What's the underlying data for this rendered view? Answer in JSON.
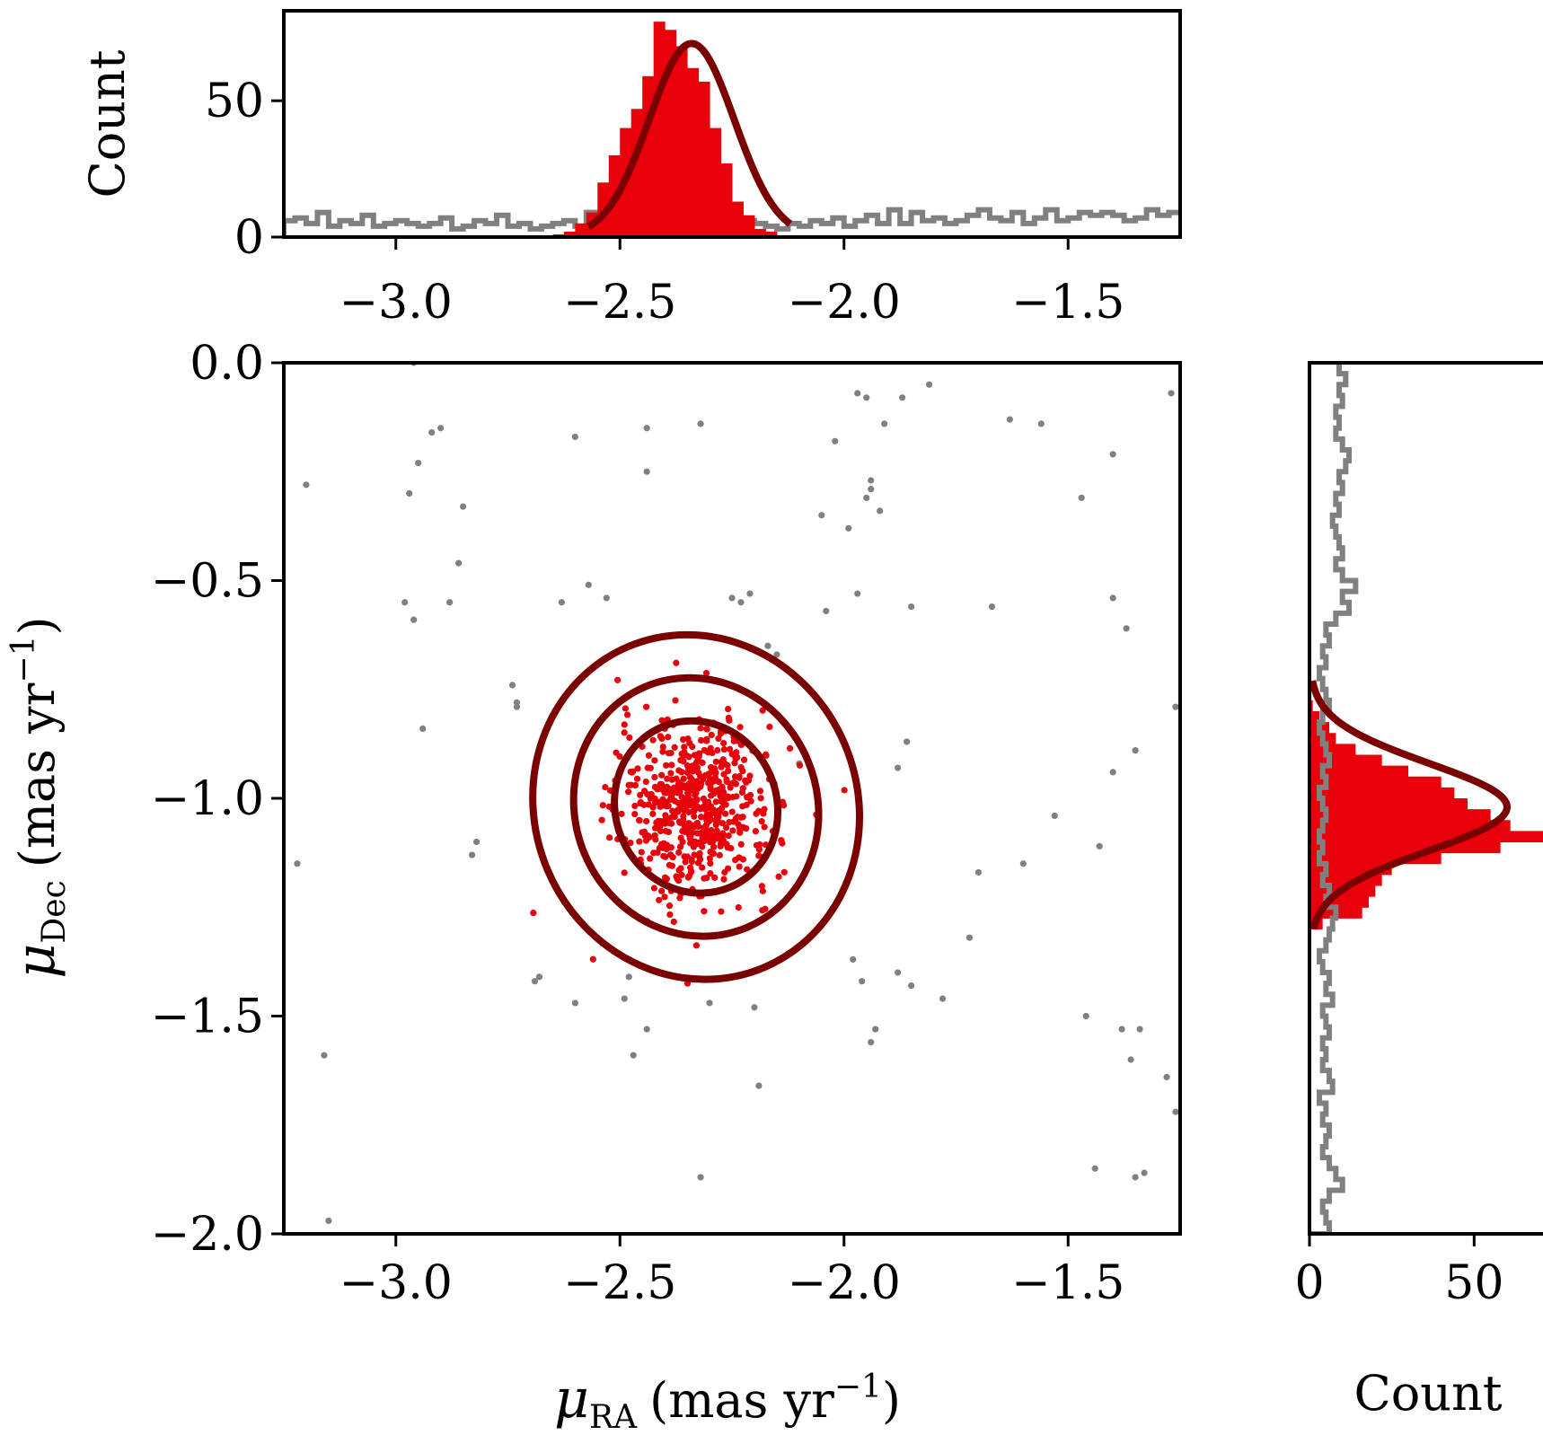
{
  "colors": {
    "member_points": "#e8000b",
    "field_points": "#808080",
    "fit": "#7b0000",
    "member_hist": "#e8000b",
    "field_hist": "#808080"
  },
  "labels": {
    "top_ylabel": "Count",
    "right_xlabel": "Count",
    "main_xlabel_sym": "μ",
    "main_xlabel_sub": "RA",
    "main_xlabel_unit": "(mas yr",
    "main_xlabel_exp": "−1",
    "main_xlabel_close": ")",
    "main_ylabel_sym": "μ",
    "main_ylabel_sub": "Dec",
    "main_ylabel_unit": "(mas yr",
    "main_ylabel_exp": "−1",
    "main_ylabel_close": ")"
  },
  "chart_data": [
    {
      "type": "scatter",
      "xlim": [
        -3.25,
        -1.25
      ],
      "ylim": [
        -2.0,
        0.0
      ],
      "xticks": [
        -3.0,
        -2.5,
        -2.0,
        -1.5
      ],
      "xtick_labels": [
        "−3.0",
        "−2.5",
        "−2.0",
        "−1.5"
      ],
      "yticks": [
        0.0,
        -0.5,
        -1.0,
        -1.5,
        -2.0
      ],
      "ytick_labels": [
        "0.0",
        "−0.5",
        "−1.0",
        "−1.5",
        "−2.0"
      ],
      "grid": false,
      "series": [
        {
          "role": "field",
          "points": [
            [
              -2.96,
              0.0
            ],
            [
              -2.9,
              -0.15
            ],
            [
              -2.92,
              -0.16
            ],
            [
              -2.95,
              -0.23
            ],
            [
              -2.97,
              -0.3
            ],
            [
              -3.2,
              -0.28
            ],
            [
              -2.85,
              -0.33
            ],
            [
              -2.86,
              -0.46
            ],
            [
              -2.98,
              -0.55
            ],
            [
              -2.96,
              -0.59
            ],
            [
              -2.88,
              -0.55
            ],
            [
              -2.6,
              -0.17
            ],
            [
              -2.57,
              -0.51
            ],
            [
              -2.63,
              -0.55
            ],
            [
              -2.53,
              -0.54
            ],
            [
              -2.44,
              -0.15
            ],
            [
              -2.44,
              -0.25
            ],
            [
              -2.32,
              -0.14
            ],
            [
              -2.25,
              -0.54
            ],
            [
              -2.23,
              -0.55
            ],
            [
              -2.21,
              -0.53
            ],
            [
              -2.17,
              -0.65
            ],
            [
              -2.15,
              -0.67
            ],
            [
              -2.1,
              -0.92
            ],
            [
              -2.02,
              -0.18
            ],
            [
              -1.97,
              -0.07
            ],
            [
              -1.95,
              -0.08
            ],
            [
              -1.91,
              -0.14
            ],
            [
              -1.87,
              -0.08
            ],
            [
              -1.94,
              -0.27
            ],
            [
              -1.94,
              -0.29
            ],
            [
              -1.95,
              -0.31
            ],
            [
              -1.92,
              -0.34
            ],
            [
              -1.99,
              -0.38
            ],
            [
              -1.97,
              -0.53
            ],
            [
              -2.05,
              -0.35
            ],
            [
              -2.04,
              -0.57
            ],
            [
              -1.81,
              -0.05
            ],
            [
              -1.63,
              -0.13
            ],
            [
              -1.56,
              -0.14
            ],
            [
              -1.47,
              -0.31
            ],
            [
              -1.4,
              -0.21
            ],
            [
              -1.85,
              -0.56
            ],
            [
              -1.67,
              -0.56
            ],
            [
              -1.4,
              -0.54
            ],
            [
              -1.37,
              -0.61
            ],
            [
              -1.27,
              -0.07
            ],
            [
              -1.26,
              -0.79
            ],
            [
              -1.86,
              -0.87
            ],
            [
              -1.88,
              -0.93
            ],
            [
              -1.4,
              -0.94
            ],
            [
              -1.35,
              -0.89
            ],
            [
              -1.53,
              -1.04
            ],
            [
              -1.43,
              -1.11
            ],
            [
              -1.72,
              -1.32
            ],
            [
              -1.7,
              -1.17
            ],
            [
              -1.88,
              -1.4
            ],
            [
              -1.85,
              -1.43
            ],
            [
              -1.78,
              -1.46
            ],
            [
              -1.6,
              -1.15
            ],
            [
              -1.98,
              -1.37
            ],
            [
              -1.96,
              -1.42
            ],
            [
              -1.93,
              -1.53
            ],
            [
              -1.94,
              -1.56
            ],
            [
              -1.46,
              -1.5
            ],
            [
              -1.38,
              -1.53
            ],
            [
              -1.36,
              -1.6
            ],
            [
              -1.34,
              -1.53
            ],
            [
              -1.28,
              -1.64
            ],
            [
              -1.26,
              -1.72
            ],
            [
              -2.74,
              -0.74
            ],
            [
              -2.73,
              -0.79
            ],
            [
              -2.73,
              -0.78
            ],
            [
              -2.94,
              -0.84
            ],
            [
              -2.82,
              -1.1
            ],
            [
              -2.83,
              -1.13
            ],
            [
              -3.22,
              -1.15
            ],
            [
              -2.69,
              -1.42
            ],
            [
              -2.68,
              -1.41
            ],
            [
              -2.6,
              -1.47
            ],
            [
              -2.48,
              -1.41
            ],
            [
              -2.49,
              -1.46
            ],
            [
              -2.47,
              -1.59
            ],
            [
              -2.44,
              -1.53
            ],
            [
              -2.3,
              -1.47
            ],
            [
              -2.2,
              -1.48
            ],
            [
              -2.19,
              -1.66
            ],
            [
              -2.32,
              -1.87
            ],
            [
              -3.16,
              -1.59
            ],
            [
              -3.15,
              -1.97
            ],
            [
              -1.44,
              -1.85
            ],
            [
              -1.35,
              -1.87
            ],
            [
              -1.33,
              -1.86
            ]
          ]
        },
        {
          "role": "member",
          "center": [
            -2.33,
            -1.02
          ],
          "sigma": [
            0.085,
            0.1
          ],
          "count": 600,
          "seed": 7
        }
      ],
      "contours": [
        {
          "center": [
            -2.33,
            -1.02
          ],
          "semi_axes": [
            0.18,
            0.2
          ],
          "angle_deg": -23
        },
        {
          "center": [
            -2.33,
            -1.02
          ],
          "semi_axes": [
            0.27,
            0.3
          ],
          "angle_deg": -23
        },
        {
          "center": [
            -2.33,
            -1.02
          ],
          "semi_axes": [
            0.36,
            0.4
          ],
          "angle_deg": -23
        }
      ]
    },
    {
      "type": "bar",
      "orientation": "vertical",
      "xlim": [
        -3.25,
        -1.25
      ],
      "ylim": [
        0,
        83
      ],
      "xticks": [
        -3.0,
        -2.5,
        -2.0,
        -1.5
      ],
      "xtick_labels": [
        "−3.0",
        "−2.5",
        "−2.0",
        "−1.5"
      ],
      "yticks": [
        0,
        50
      ],
      "ytick_labels": [
        "0",
        "50"
      ],
      "bin_width": 0.025,
      "series": [
        {
          "name": "members",
          "bin_start": -2.65,
          "values": [
            1,
            2,
            5,
            9,
            20,
            30,
            40,
            47,
            59,
            79,
            76,
            70,
            62,
            57,
            40,
            27,
            13,
            8,
            3,
            2
          ]
        },
        {
          "name": "field",
          "bin_start": -3.25,
          "values": [
            6,
            7,
            5,
            9,
            4,
            6,
            5,
            8,
            4,
            5,
            6,
            5,
            4,
            5,
            7,
            3,
            4,
            6,
            5,
            8,
            4,
            5,
            3,
            4,
            5,
            6,
            4,
            9,
            7,
            5,
            4,
            5,
            10,
            11,
            10,
            9,
            10,
            6,
            8,
            5,
            7,
            6,
            5,
            4,
            3,
            5,
            4,
            6,
            5,
            7,
            4,
            6,
            8,
            5,
            10,
            5,
            9,
            6,
            7,
            5,
            6,
            8,
            10,
            7,
            6,
            9,
            5,
            7,
            10,
            6,
            7,
            9,
            8,
            9,
            8,
            6,
            7,
            10,
            8,
            9
          ]
        }
      ],
      "fit": {
        "type": "gaussian",
        "mu": -2.34,
        "sigma": 0.095,
        "amplitude": 71,
        "x_range": [
          -2.57,
          -2.12
        ]
      }
    },
    {
      "type": "bar",
      "orientation": "horizontal",
      "ylim": [
        -2.0,
        0.0
      ],
      "xlim": [
        0,
        72
      ],
      "xticks": [
        0,
        50
      ],
      "xtick_labels": [
        "0",
        "50"
      ],
      "bin_width": 0.025,
      "series": [
        {
          "name": "members",
          "bin_start": -1.3,
          "values": [
            4,
            16,
            18,
            20,
            22,
            25,
            40,
            58,
            72,
            61,
            55,
            48,
            44,
            40,
            30,
            22,
            14,
            8,
            6,
            3,
            1
          ]
        },
        {
          "name": "field",
          "bin_start": -2.0,
          "values": [
            6,
            5,
            4,
            6,
            10,
            8,
            6,
            4,
            5,
            6,
            4,
            5,
            3,
            7,
            6,
            4,
            5,
            4,
            6,
            5,
            4,
            7,
            5,
            6,
            4,
            3,
            5,
            6,
            7,
            8,
            5,
            6,
            4,
            5,
            3,
            4,
            3,
            4,
            5,
            4,
            3,
            5,
            4,
            6,
            5,
            4,
            3,
            4,
            6,
            5,
            4,
            3,
            5,
            4,
            6,
            5,
            8,
            12,
            10,
            14,
            10,
            8,
            10,
            9,
            8,
            7,
            9,
            8,
            10,
            9,
            11,
            12,
            10,
            8,
            9,
            8,
            10,
            9,
            11,
            9
          ]
        }
      ],
      "fit": {
        "type": "gaussian",
        "mu": -1.02,
        "sigma": 0.1,
        "amplitude": 60,
        "y_range": [
          -1.3,
          -0.73
        ]
      }
    }
  ]
}
